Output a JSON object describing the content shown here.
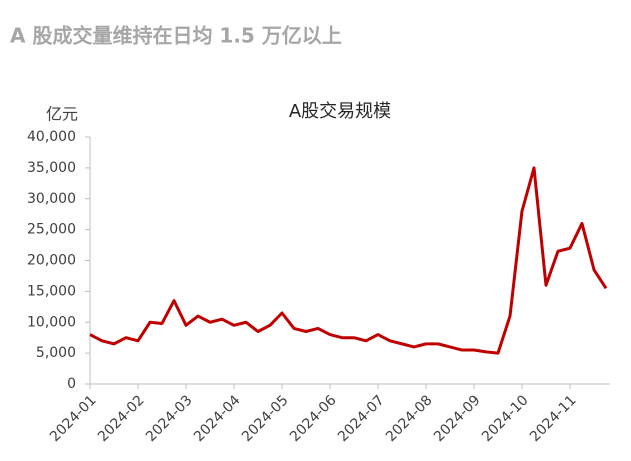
{
  "header": "A 股成交量维持在日均 1.5 万亿以上",
  "chart_data": {
    "type": "line",
    "title": "A股交易规模",
    "y_unit": "亿元",
    "color": "#c00000",
    "categories": [
      "2024-01",
      null,
      null,
      null,
      "2024-02",
      null,
      null,
      null,
      "2024-03",
      null,
      null,
      null,
      "2024-04",
      null,
      null,
      null,
      "2024-05",
      null,
      null,
      null,
      "2024-06",
      null,
      null,
      null,
      "2024-07",
      null,
      null,
      null,
      "2024-08",
      null,
      null,
      null,
      "2024-09",
      null,
      null,
      null,
      "2024-10",
      null,
      null,
      null,
      "2024-11",
      null,
      null,
      null
    ],
    "values": [
      8000,
      7000,
      6500,
      7500,
      7000,
      10000,
      9800,
      13500,
      9500,
      11000,
      10000,
      10500,
      9500,
      10000,
      8500,
      9500,
      11500,
      9000,
      8500,
      9000,
      8000,
      7500,
      7500,
      7000,
      8000,
      7000,
      6500,
      6000,
      6500,
      6500,
      6000,
      5500,
      5500,
      5200,
      5000,
      11000,
      28000,
      35000,
      16000,
      21500,
      22000,
      26000,
      18500,
      15500
    ],
    "ylim": [
      0,
      40000
    ],
    "yticks": [
      0,
      {
        "value": 5000,
        "label": "5,000"
      },
      {
        "value": 10000,
        "label": "10,000"
      },
      {
        "value": 15000,
        "label": "15,000"
      },
      {
        "value": 20000,
        "label": "20,000"
      },
      {
        "value": 25000,
        "label": "25,000"
      },
      {
        "value": 30000,
        "label": "30,000"
      },
      {
        "value": 35000,
        "label": "35,000"
      },
      {
        "value": 40000,
        "label": "40,000"
      }
    ]
  }
}
